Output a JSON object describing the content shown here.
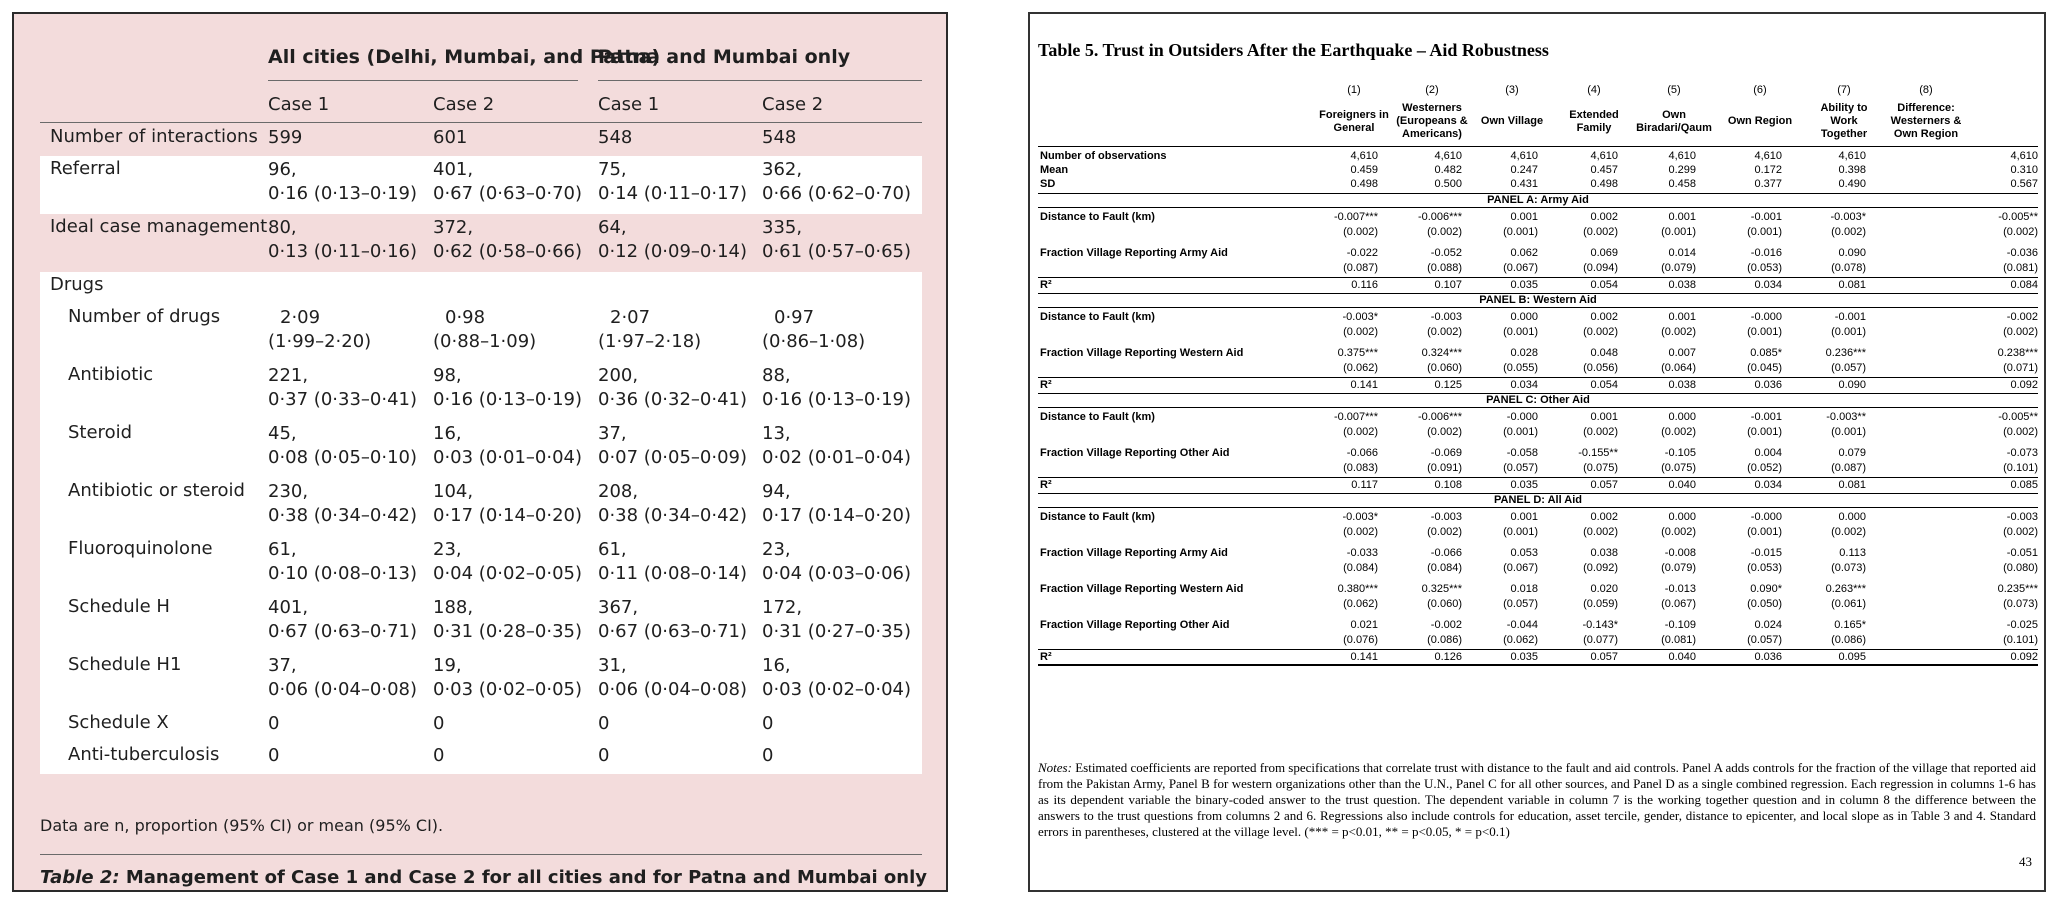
{
  "left": {
    "groups": [
      "All cities (Delhi, Mumbai, and Patna)",
      "Patna and Mumbai only"
    ],
    "cases": [
      "Case 1",
      "Case 2",
      "Case 1",
      "Case 2"
    ],
    "rows": [
      {
        "label": "Number of interactions",
        "sub": false,
        "cells": [
          [
            "599"
          ],
          [
            "601"
          ],
          [
            "548"
          ],
          [
            "548"
          ]
        ]
      },
      {
        "label": "Referral",
        "sub": false,
        "cells": [
          [
            "96,",
            "0·16 (0·13–0·19)"
          ],
          [
            "401,",
            "0·67 (0·63–0·70)"
          ],
          [
            "75,",
            "0·14 (0·11–0·17)"
          ],
          [
            "362,",
            "0·66 (0·62–0·70)"
          ]
        ]
      },
      {
        "label": "Ideal case management",
        "sub": false,
        "cells": [
          [
            "80,",
            "0·13 (0·11–0·16)"
          ],
          [
            "372,",
            "0·62 (0·58–0·66)"
          ],
          [
            "64,",
            "0·12 (0·09–0·14)"
          ],
          [
            "335,",
            "0·61 (0·57–0·65)"
          ]
        ]
      },
      {
        "label": "Drugs",
        "sub": false,
        "cells": [
          [
            ""
          ],
          [
            ""
          ],
          [
            ""
          ],
          [
            ""
          ]
        ]
      },
      {
        "label": "Number of drugs",
        "sub": true,
        "cells": [
          [
            "2·09",
            "(1·99–2·20)"
          ],
          [
            "0·98",
            "(0·88–1·09)"
          ],
          [
            "2·07",
            "(1·97–2·18)"
          ],
          [
            "0·97",
            "(0·86–1·08)"
          ]
        ]
      },
      {
        "label": "Antibiotic",
        "sub": true,
        "cells": [
          [
            "221,",
            "0·37 (0·33–0·41)"
          ],
          [
            "98,",
            "0·16 (0·13–0·19)"
          ],
          [
            "200,",
            "0·36 (0·32–0·41)"
          ],
          [
            "88,",
            "0·16 (0·13–0·19)"
          ]
        ]
      },
      {
        "label": "Steroid",
        "sub": true,
        "cells": [
          [
            "45,",
            "0·08 (0·05–0·10)"
          ],
          [
            "16,",
            "0·03 (0·01–0·04)"
          ],
          [
            "37,",
            "0·07 (0·05–0·09)"
          ],
          [
            "13,",
            "0·02 (0·01–0·04)"
          ]
        ]
      },
      {
        "label": "Antibiotic or steroid",
        "sub": true,
        "cells": [
          [
            "230,",
            "0·38 (0·34–0·42)"
          ],
          [
            "104,",
            "0·17 (0·14–0·20)"
          ],
          [
            "208,",
            "0·38 (0·34–0·42)"
          ],
          [
            "94,",
            "0·17 (0·14–0·20)"
          ]
        ]
      },
      {
        "label": "Fluoroquinolone",
        "sub": true,
        "cells": [
          [
            "61,",
            "0·10 (0·08–0·13)"
          ],
          [
            "23,",
            "0·04 (0·02–0·05)"
          ],
          [
            "61,",
            "0·11 (0·08–0·14)"
          ],
          [
            "23,",
            "0·04 (0·03–0·06)"
          ]
        ]
      },
      {
        "label": "Schedule H",
        "sub": true,
        "cells": [
          [
            "401,",
            "0·67 (0·63–0·71)"
          ],
          [
            "188,",
            "0·31 (0·28–0·35)"
          ],
          [
            "367,",
            "0·67 (0·63–0·71)"
          ],
          [
            "172,",
            "0·31 (0·27–0·35)"
          ]
        ]
      },
      {
        "label": "Schedule H1",
        "sub": true,
        "cells": [
          [
            "37,",
            "0·06 (0·04–0·08)"
          ],
          [
            "19,",
            "0·03 (0·02–0·05)"
          ],
          [
            "31,",
            "0·06 (0·04–0·08)"
          ],
          [
            "16,",
            "0·03 (0·02–0·04)"
          ]
        ]
      },
      {
        "label": "Schedule X",
        "sub": true,
        "cells": [
          [
            "0"
          ],
          [
            "0"
          ],
          [
            "0"
          ],
          [
            "0"
          ]
        ]
      },
      {
        "label": "Anti-tuberculosis",
        "sub": true,
        "cells": [
          [
            "0"
          ],
          [
            "0"
          ],
          [
            "0"
          ],
          [
            "0"
          ]
        ]
      }
    ],
    "footnote": "Data are n, proportion (95% CI) or mean (95% CI).",
    "caption_label": "Table 2:",
    "caption_text": " Management of Case 1 and Case 2 for all cities and for Patna and Mumbai only"
  },
  "right": {
    "title": "Table 5. Trust in Outsiders After the Earthquake – Aid Robustness",
    "col_numbers": [
      "(1)",
      "(2)",
      "(3)",
      "(4)",
      "(5)",
      "(6)",
      "(7)",
      "(8)"
    ],
    "col_headers": [
      [
        "Foreigners in",
        "General"
      ],
      [
        "Westerners",
        "(Europeans &",
        "Americans)"
      ],
      [
        "Own Village"
      ],
      [
        "Extended",
        "Family"
      ],
      [
        "Own",
        "Biradari/Qaum"
      ],
      [
        "Own Region"
      ],
      [
        "Ability to",
        "Work",
        "Together"
      ],
      [
        "Difference:",
        "Westerners &",
        "Own Region"
      ]
    ],
    "summary": [
      {
        "label": "Number of observations",
        "values": [
          "4,610",
          "4,610",
          "4,610",
          "4,610",
          "4,610",
          "4,610",
          "4,610",
          "4,610"
        ]
      },
      {
        "label": "Mean",
        "values": [
          "0.459",
          "0.482",
          "0.247",
          "0.457",
          "0.299",
          "0.172",
          "0.398",
          "0.310"
        ]
      },
      {
        "label": "SD",
        "values": [
          "0.498",
          "0.500",
          "0.431",
          "0.498",
          "0.458",
          "0.377",
          "0.490",
          "0.567"
        ]
      }
    ],
    "panels": [
      {
        "title": "PANEL A: Army Aid",
        "rows": [
          {
            "label": "Distance to Fault (km)",
            "values": [
              "-0.007***",
              "-0.006***",
              "0.001",
              "0.002",
              "0.001",
              "-0.001",
              "-0.003*",
              "-0.005**"
            ],
            "se": [
              "(0.002)",
              "(0.002)",
              "(0.001)",
              "(0.002)",
              "(0.001)",
              "(0.001)",
              "(0.002)",
              "(0.002)"
            ]
          },
          {
            "label": "Fraction Village Reporting Army Aid",
            "values": [
              "-0.022",
              "-0.052",
              "0.062",
              "0.069",
              "0.014",
              "-0.016",
              "0.090",
              "-0.036"
            ],
            "se": [
              "(0.087)",
              "(0.088)",
              "(0.067)",
              "(0.094)",
              "(0.079)",
              "(0.053)",
              "(0.078)",
              "(0.081)"
            ]
          }
        ],
        "r2": [
          "0.116",
          "0.107",
          "0.035",
          "0.054",
          "0.038",
          "0.034",
          "0.081",
          "0.084"
        ]
      },
      {
        "title": "PANEL B: Western Aid",
        "rows": [
          {
            "label": "Distance to Fault (km)",
            "values": [
              "-0.003*",
              "-0.003",
              "0.000",
              "0.002",
              "0.001",
              "-0.000",
              "-0.001",
              "-0.002"
            ],
            "se": [
              "(0.002)",
              "(0.002)",
              "(0.001)",
              "(0.002)",
              "(0.002)",
              "(0.001)",
              "(0.001)",
              "(0.002)"
            ]
          },
          {
            "label": "Fraction Village Reporting Western  Aid",
            "values": [
              "0.375***",
              "0.324***",
              "0.028",
              "0.048",
              "0.007",
              "0.085*",
              "0.236***",
              "0.238***"
            ],
            "se": [
              "(0.062)",
              "(0.060)",
              "(0.055)",
              "(0.056)",
              "(0.064)",
              "(0.045)",
              "(0.057)",
              "(0.071)"
            ]
          }
        ],
        "r2": [
          "0.141",
          "0.125",
          "0.034",
          "0.054",
          "0.038",
          "0.036",
          "0.090",
          "0.092"
        ]
      },
      {
        "title": "PANEL C: Other Aid",
        "rows": [
          {
            "label": "Distance to Fault (km)",
            "values": [
              "-0.007***",
              "-0.006***",
              "-0.000",
              "0.001",
              "0.000",
              "-0.001",
              "-0.003**",
              "-0.005**"
            ],
            "se": [
              "(0.002)",
              "(0.002)",
              "(0.001)",
              "(0.002)",
              "(0.002)",
              "(0.001)",
              "(0.001)",
              "(0.002)"
            ]
          },
          {
            "label": "Fraction Village Reporting Other Aid",
            "values": [
              "-0.066",
              "-0.069",
              "-0.058",
              "-0.155**",
              "-0.105",
              "0.004",
              "0.079",
              "-0.073"
            ],
            "se": [
              "(0.083)",
              "(0.091)",
              "(0.057)",
              "(0.075)",
              "(0.075)",
              "(0.052)",
              "(0.087)",
              "(0.101)"
            ]
          }
        ],
        "r2": [
          "0.117",
          "0.108",
          "0.035",
          "0.057",
          "0.040",
          "0.034",
          "0.081",
          "0.085"
        ]
      },
      {
        "title": "PANEL D: All Aid",
        "rows": [
          {
            "label": "Distance to Fault (km)",
            "values": [
              "-0.003*",
              "-0.003",
              "0.001",
              "0.002",
              "0.000",
              "-0.000",
              "0.000",
              "-0.003"
            ],
            "se": [
              "(0.002)",
              "(0.002)",
              "(0.001)",
              "(0.002)",
              "(0.002)",
              "(0.001)",
              "(0.002)",
              "(0.002)"
            ]
          },
          {
            "label": "Fraction Village Reporting Army Aid",
            "values": [
              "-0.033",
              "-0.066",
              "0.053",
              "0.038",
              "-0.008",
              "-0.015",
              "0.113",
              "-0.051"
            ],
            "se": [
              "(0.084)",
              "(0.084)",
              "(0.067)",
              "(0.092)",
              "(0.079)",
              "(0.053)",
              "(0.073)",
              "(0.080)"
            ]
          },
          {
            "label": "Fraction Village Reporting Western  Aid",
            "values": [
              "0.380***",
              "0.325***",
              "0.018",
              "0.020",
              "-0.013",
              "0.090*",
              "0.263***",
              "0.235***"
            ],
            "se": [
              "(0.062)",
              "(0.060)",
              "(0.057)",
              "(0.059)",
              "(0.067)",
              "(0.050)",
              "(0.061)",
              "(0.073)"
            ]
          },
          {
            "label": "Fraction Village Reporting Other Aid",
            "values": [
              "0.021",
              "-0.002",
              "-0.044",
              "-0.143*",
              "-0.109",
              "0.024",
              "0.165*",
              "-0.025"
            ],
            "se": [
              "(0.076)",
              "(0.086)",
              "(0.062)",
              "(0.077)",
              "(0.081)",
              "(0.057)",
              "(0.086)",
              "(0.101)"
            ]
          }
        ],
        "r2": [
          "0.141",
          "0.126",
          "0.035",
          "0.057",
          "0.040",
          "0.036",
          "0.095",
          "0.092"
        ]
      }
    ],
    "r2_label": "R²",
    "notes_label": "Notes:",
    "notes_text": " Estimated coefficients are reported from specifications that correlate trust with distance to the fault and aid controls. Panel A adds controls for the fraction of the village that reported aid from the Pakistan Army, Panel B for western organizations other than the U.N., Panel C for all other sources, and Panel D as a single combined regression. Each regression in columns 1-6 has as its dependent variable the binary-coded answer to the trust question. The dependent variable in column 7 is the working together question and in column 8 the difference between the answers to the trust questions from columns 2 and 6. Regressions also include controls for education, asset tercile, gender, distance to epicenter, and local slope as in Table 3 and 4. Standard errors in parentheses, clustered at the village level. (*** = p<0.01, ** = p<0.05, * = p<0.1)",
    "page_number": "43"
  }
}
